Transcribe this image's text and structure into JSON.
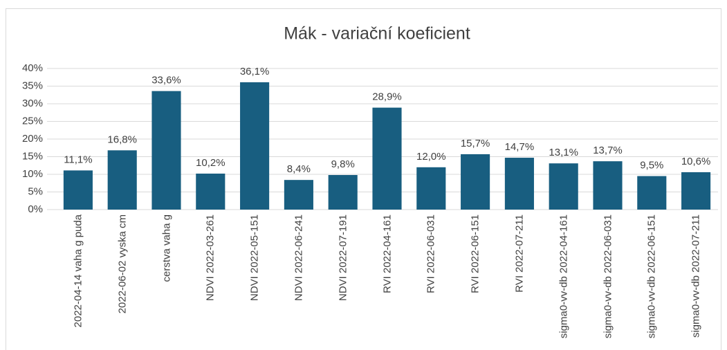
{
  "chart_data": {
    "type": "bar",
    "title": "Mák - variační koeficient",
    "categories": [
      "2022-04-14 vaha g puda",
      "2022-06-02 vyska cm",
      "cerstva vaha g",
      "NDVI 2022-03-261",
      "NDVI 2022-05-151",
      "NDVI 2022-06-241",
      "NDVI 2022-07-191",
      "RVI 2022-04-161",
      "RVI 2022-06-031",
      "RVI 2022-06-151",
      "RVI 2022-07-211",
      "sigma0-vv-db 2022-04-161",
      "sigma0-vv-db 2022-06-031",
      "sigma0-vv-db 2022-06-151",
      "sigma0-vv-db 2022-07-211"
    ],
    "values": [
      11.1,
      16.8,
      33.6,
      10.2,
      36.1,
      8.4,
      9.8,
      28.9,
      12.0,
      15.7,
      14.7,
      13.1,
      13.7,
      9.5,
      10.6
    ],
    "value_labels": [
      "11,1%",
      "16,8%",
      "33,6%",
      "10,2%",
      "36,1%",
      "8,4%",
      "9,8%",
      "28,9%",
      "12,0%",
      "15,7%",
      "14,7%",
      "13,1%",
      "13,7%",
      "9,5%",
      "10,6%"
    ],
    "color": "#185e80",
    "ylim": [
      0,
      40
    ],
    "yticks": [
      {
        "value": 0,
        "label": "0%"
      },
      {
        "value": 5,
        "label": "5%"
      },
      {
        "value": 10,
        "label": "10%"
      },
      {
        "value": 15,
        "label": "15%"
      },
      {
        "value": 20,
        "label": "20%"
      },
      {
        "value": 25,
        "label": "25%"
      },
      {
        "value": 30,
        "label": "30%"
      },
      {
        "value": 35,
        "label": "35%"
      },
      {
        "value": 40,
        "label": "40%"
      }
    ],
    "grid": true
  }
}
